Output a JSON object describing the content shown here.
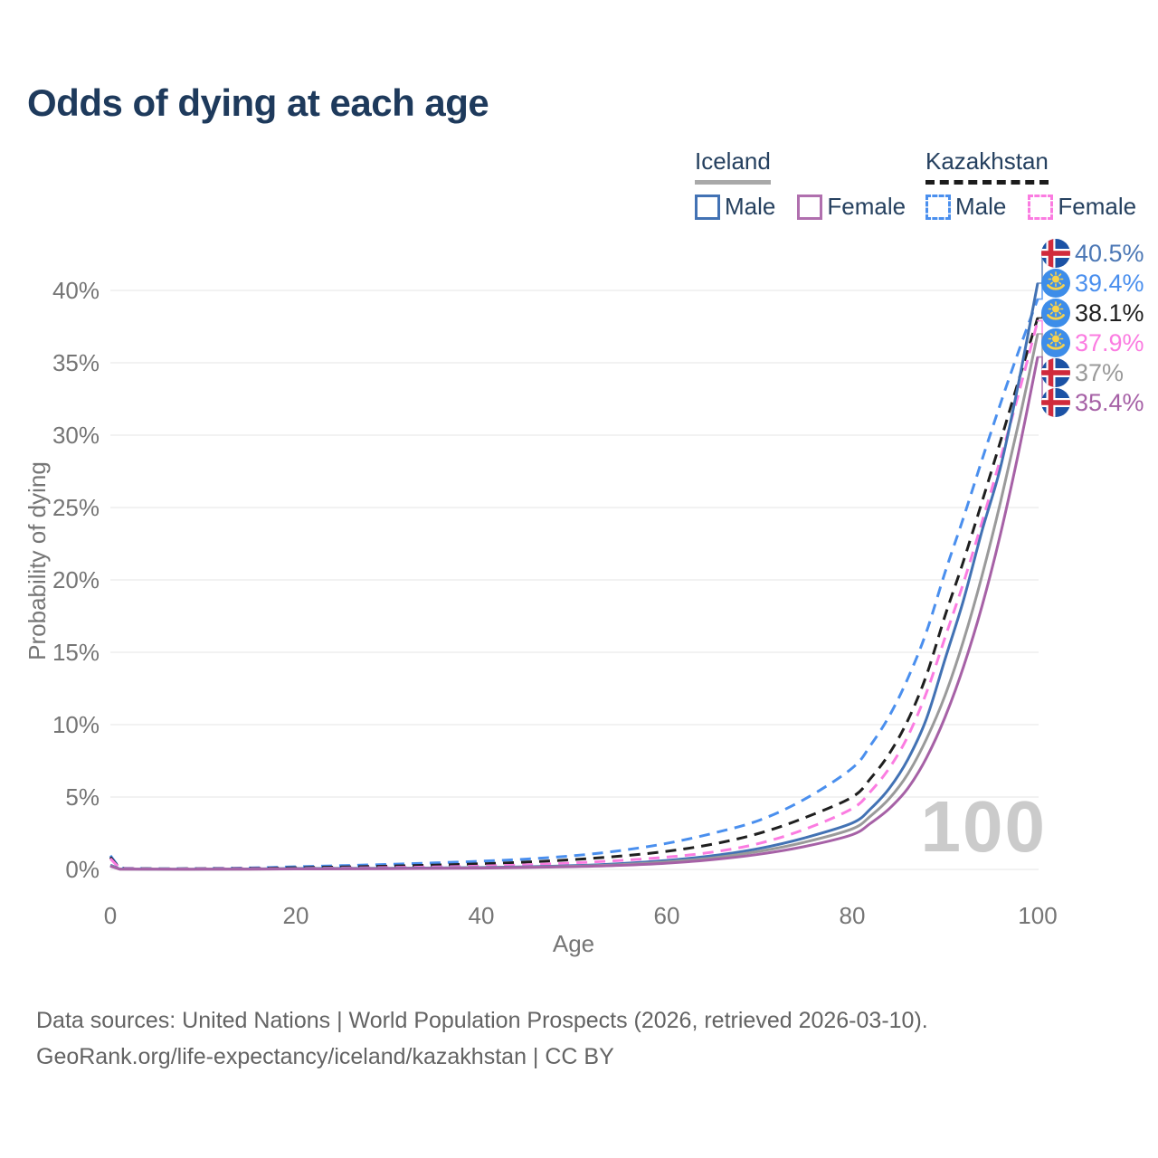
{
  "title": "Odds of dying at each age",
  "legend": {
    "groups": [
      {
        "country": "Iceland",
        "line_style": "solid",
        "items": [
          {
            "label": "Male",
            "color": "#4272b4",
            "dashed": false
          },
          {
            "label": "Female",
            "color": "#b06fae",
            "dashed": false
          }
        ]
      },
      {
        "country": "Kazakhstan",
        "line_style": "dashed",
        "items": [
          {
            "label": "Male",
            "color": "#4a8fee",
            "dashed": true
          },
          {
            "label": "Female",
            "color": "#fb7ce1",
            "dashed": true
          }
        ]
      }
    ]
  },
  "axes": {
    "y_title": "Probability of dying",
    "x_title": "Age",
    "y_ticks": [
      "0%",
      "5%",
      "10%",
      "15%",
      "20%",
      "25%",
      "30%",
      "35%",
      "40%"
    ],
    "x_ticks": [
      "0",
      "20",
      "40",
      "60",
      "80",
      "100"
    ]
  },
  "age_indicator": "100",
  "chart_data": {
    "type": "line",
    "title": "Odds of dying at each age",
    "xlabel": "Age",
    "ylabel": "Probability of dying",
    "xlim": [
      0,
      100
    ],
    "ylim_percent": [
      0,
      42
    ],
    "grid": "horizontal",
    "legend_position": "top-right",
    "x": [
      0,
      1,
      5,
      10,
      15,
      20,
      25,
      30,
      35,
      40,
      45,
      50,
      55,
      60,
      65,
      70,
      75,
      80,
      82,
      84,
      86,
      88,
      90,
      92,
      94,
      96,
      98,
      100
    ],
    "series": [
      {
        "name": "Kazakhstan Male",
        "color": "#4a8fee",
        "dashed": true,
        "values": [
          0.95,
          0.08,
          0.05,
          0.06,
          0.1,
          0.18,
          0.26,
          0.35,
          0.45,
          0.57,
          0.72,
          0.95,
          1.3,
          1.8,
          2.5,
          3.4,
          4.9,
          7.0,
          8.6,
          10.6,
          13.2,
          16.4,
          20.5,
          24.3,
          28.3,
          32.2,
          35.9,
          39.4
        ]
      },
      {
        "name": "Kazakhstan Total",
        "color": "#1f1f1f",
        "dashed": true,
        "values": [
          0.85,
          0.07,
          0.04,
          0.05,
          0.07,
          0.12,
          0.17,
          0.23,
          0.3,
          0.39,
          0.51,
          0.68,
          0.92,
          1.25,
          1.75,
          2.5,
          3.6,
          5.0,
          6.3,
          8.0,
          10.3,
          13.4,
          17.5,
          21.3,
          25.4,
          29.6,
          33.9,
          38.1
        ]
      },
      {
        "name": "Kazakhstan Female",
        "color": "#fb7ce1",
        "dashed": true,
        "values": [
          0.75,
          0.06,
          0.03,
          0.04,
          0.05,
          0.07,
          0.1,
          0.13,
          0.17,
          0.23,
          0.32,
          0.45,
          0.62,
          0.85,
          1.2,
          1.8,
          2.8,
          4.2,
          5.4,
          7.0,
          9.2,
          12.2,
          16.0,
          19.8,
          24.0,
          28.4,
          33.0,
          37.9
        ]
      },
      {
        "name": "Iceland Male",
        "color": "#4272b4",
        "dashed": false,
        "values": [
          0.3,
          0.03,
          0.01,
          0.01,
          0.03,
          0.06,
          0.07,
          0.08,
          0.1,
          0.13,
          0.18,
          0.26,
          0.4,
          0.62,
          0.95,
          1.45,
          2.2,
          3.2,
          4.2,
          5.6,
          7.6,
          10.4,
          14.5,
          18.6,
          23.4,
          27.8,
          33.8,
          40.5
        ]
      },
      {
        "name": "Iceland Total",
        "color": "#9a9a9a",
        "dashed": false,
        "values": [
          0.25,
          0.02,
          0.01,
          0.01,
          0.02,
          0.04,
          0.05,
          0.06,
          0.08,
          0.11,
          0.15,
          0.22,
          0.33,
          0.52,
          0.8,
          1.25,
          1.9,
          2.8,
          3.7,
          4.9,
          6.6,
          9.0,
          12.0,
          15.8,
          20.3,
          25.4,
          31.0,
          37.0
        ]
      },
      {
        "name": "Iceland Female",
        "color": "#a661a6",
        "dashed": false,
        "values": [
          0.22,
          0.02,
          0.01,
          0.01,
          0.02,
          0.03,
          0.04,
          0.05,
          0.07,
          0.09,
          0.13,
          0.19,
          0.28,
          0.43,
          0.68,
          1.05,
          1.6,
          2.4,
          3.2,
          4.2,
          5.6,
          7.7,
          10.5,
          14.0,
          18.2,
          23.2,
          29.0,
          35.4
        ]
      }
    ]
  },
  "end_labels": [
    {
      "text": "40.5%",
      "value": 40.5,
      "flag": "iceland",
      "series": "Iceland Male",
      "color": "#4b77b5"
    },
    {
      "text": "39.4%",
      "value": 39.4,
      "flag": "kazakhstan",
      "series": "Kazakhstan Male",
      "color": "#4a8fee"
    },
    {
      "text": "38.1%",
      "value": 38.1,
      "flag": "kazakhstan",
      "series": "Kazakhstan Total",
      "color": "#1f1f1f"
    },
    {
      "text": "37.9%",
      "value": 37.9,
      "flag": "kazakhstan",
      "series": "Kazakhstan Female",
      "color": "#fb7ce1"
    },
    {
      "text": "37%",
      "value": 37.0,
      "flag": "iceland",
      "series": "Iceland Total",
      "color": "#9a9a9a"
    },
    {
      "text": "35.4%",
      "value": 35.4,
      "flag": "iceland",
      "series": "Iceland Female",
      "color": "#a661a6"
    }
  ],
  "flag_colors": {
    "iceland_blue": "#1b52a5",
    "iceland_red": "#d02a3c",
    "iceland_white": "#ffffff",
    "kazakhstan_blue": "#3d8de9",
    "kazakhstan_yellow": "#f8d24a"
  },
  "footer": {
    "line1": "Data sources: United Nations | World Population Prospects (2026, retrieved 2026-03-10).",
    "line2": "GeoRank.org/life-expectancy/iceland/kazakhstan | CC BY"
  }
}
